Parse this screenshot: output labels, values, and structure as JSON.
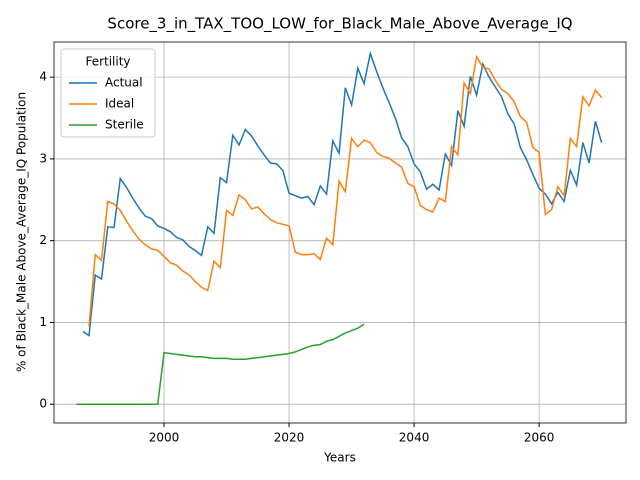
{
  "chart_data": {
    "type": "line",
    "title": "Score_3_in_TAX_TOO_LOW_for_Black_Male_Above_Average_IQ",
    "xlabel": "Years",
    "ylabel": "% of Black_Male Above_Average_IQ Population",
    "legend_title": "Fertility",
    "legend": "upper left",
    "grid": true,
    "x": [
      1986,
      1987,
      1988,
      1989,
      1990,
      1991,
      1992,
      1993,
      1994,
      1995,
      1996,
      1997,
      1998,
      1999,
      2000,
      2001,
      2002,
      2003,
      2004,
      2005,
      2006,
      2007,
      2008,
      2009,
      2010,
      2011,
      2012,
      2013,
      2014,
      2015,
      2016,
      2017,
      2018,
      2019,
      2020,
      2021,
      2022,
      2023,
      2024,
      2025,
      2026,
      2027,
      2028,
      2029,
      2030,
      2031,
      2032,
      2033,
      2034,
      2035,
      2036,
      2037,
      2038,
      2039,
      2040,
      2041,
      2042,
      2043,
      2044,
      2045,
      2046,
      2047,
      2048,
      2049,
      2050,
      2051,
      2052,
      2053,
      2054,
      2055,
      2056,
      2057,
      2058,
      2059,
      2060,
      2061,
      2062,
      2063,
      2064,
      2065,
      2066,
      2067,
      2068,
      2069,
      2070
    ],
    "series": [
      {
        "name": "Actual",
        "color": "#1f77b4",
        "values": [
          null,
          0.89,
          0.84,
          1.58,
          1.53,
          2.17,
          2.16,
          2.76,
          2.65,
          2.52,
          2.4,
          2.3,
          2.27,
          2.18,
          2.15,
          2.11,
          2.04,
          2.01,
          1.93,
          1.88,
          1.82,
          2.17,
          2.09,
          2.77,
          2.71,
          3.29,
          3.17,
          3.36,
          3.28,
          3.16,
          3.05,
          2.95,
          2.94,
          2.86,
          2.58,
          2.55,
          2.52,
          2.54,
          2.44,
          2.67,
          2.57,
          3.22,
          3.07,
          3.87,
          3.66,
          4.11,
          3.92,
          4.29,
          4.07,
          3.87,
          3.69,
          3.5,
          3.26,
          3.15,
          2.94,
          2.84,
          2.63,
          2.69,
          2.62,
          3.06,
          2.92,
          3.59,
          3.4,
          4.01,
          3.78,
          4.16,
          4.0,
          3.88,
          3.76,
          3.55,
          3.43,
          3.14,
          2.99,
          2.81,
          2.64,
          2.57,
          2.45,
          2.59,
          2.48,
          2.86,
          2.68,
          3.2,
          2.95,
          3.46,
          3.2
        ]
      },
      {
        "name": "Ideal",
        "color": "#ff7f0e",
        "values": [
          null,
          null,
          0.95,
          1.83,
          1.76,
          2.48,
          2.45,
          2.37,
          2.24,
          2.12,
          2.02,
          1.95,
          1.9,
          1.88,
          1.81,
          1.73,
          1.7,
          1.63,
          1.58,
          1.5,
          1.43,
          1.39,
          1.75,
          1.67,
          2.37,
          2.31,
          2.56,
          2.5,
          2.39,
          2.41,
          2.33,
          2.26,
          2.22,
          2.2,
          2.18,
          1.86,
          1.83,
          1.83,
          1.84,
          1.77,
          2.03,
          1.95,
          2.73,
          2.6,
          3.25,
          3.15,
          3.23,
          3.2,
          3.08,
          3.03,
          3.01,
          2.95,
          2.9,
          2.7,
          2.66,
          2.43,
          2.38,
          2.35,
          2.52,
          2.48,
          3.15,
          3.05,
          3.93,
          3.8,
          4.25,
          4.12,
          4.1,
          3.96,
          3.85,
          3.8,
          3.7,
          3.52,
          3.45,
          3.14,
          3.08,
          2.32,
          2.38,
          2.66,
          2.55,
          3.25,
          3.15,
          3.76,
          3.65,
          3.84,
          3.75
        ]
      },
      {
        "name": "Sterile",
        "color": "#2ca02c",
        "values": [
          0,
          0,
          0,
          0,
          0,
          0,
          0,
          0,
          0,
          0,
          0,
          0,
          0,
          0,
          0.63,
          0.62,
          0.61,
          0.6,
          0.59,
          0.58,
          0.58,
          0.57,
          0.56,
          0.56,
          0.56,
          0.55,
          0.55,
          0.55,
          0.56,
          0.57,
          0.58,
          0.59,
          0.6,
          0.61,
          0.62,
          0.64,
          0.67,
          0.7,
          0.72,
          0.73,
          0.77,
          0.79,
          0.83,
          0.87,
          0.9,
          0.93,
          0.98,
          null,
          null,
          null,
          null,
          null,
          null,
          null,
          null,
          null,
          null,
          null,
          null,
          null,
          null,
          null,
          null,
          null,
          null,
          null,
          null,
          null,
          null,
          null,
          null,
          null,
          null,
          null,
          null,
          null,
          null,
          null,
          null,
          null,
          null,
          null,
          null,
          null,
          null
        ]
      }
    ],
    "xlim": [
      1982.4,
      2073.9
    ],
    "xticks": [
      2000,
      2020,
      2040,
      2060
    ],
    "ylim": [
      -0.23,
      4.43
    ],
    "yticks": [
      0,
      1,
      2,
      3,
      4
    ]
  }
}
